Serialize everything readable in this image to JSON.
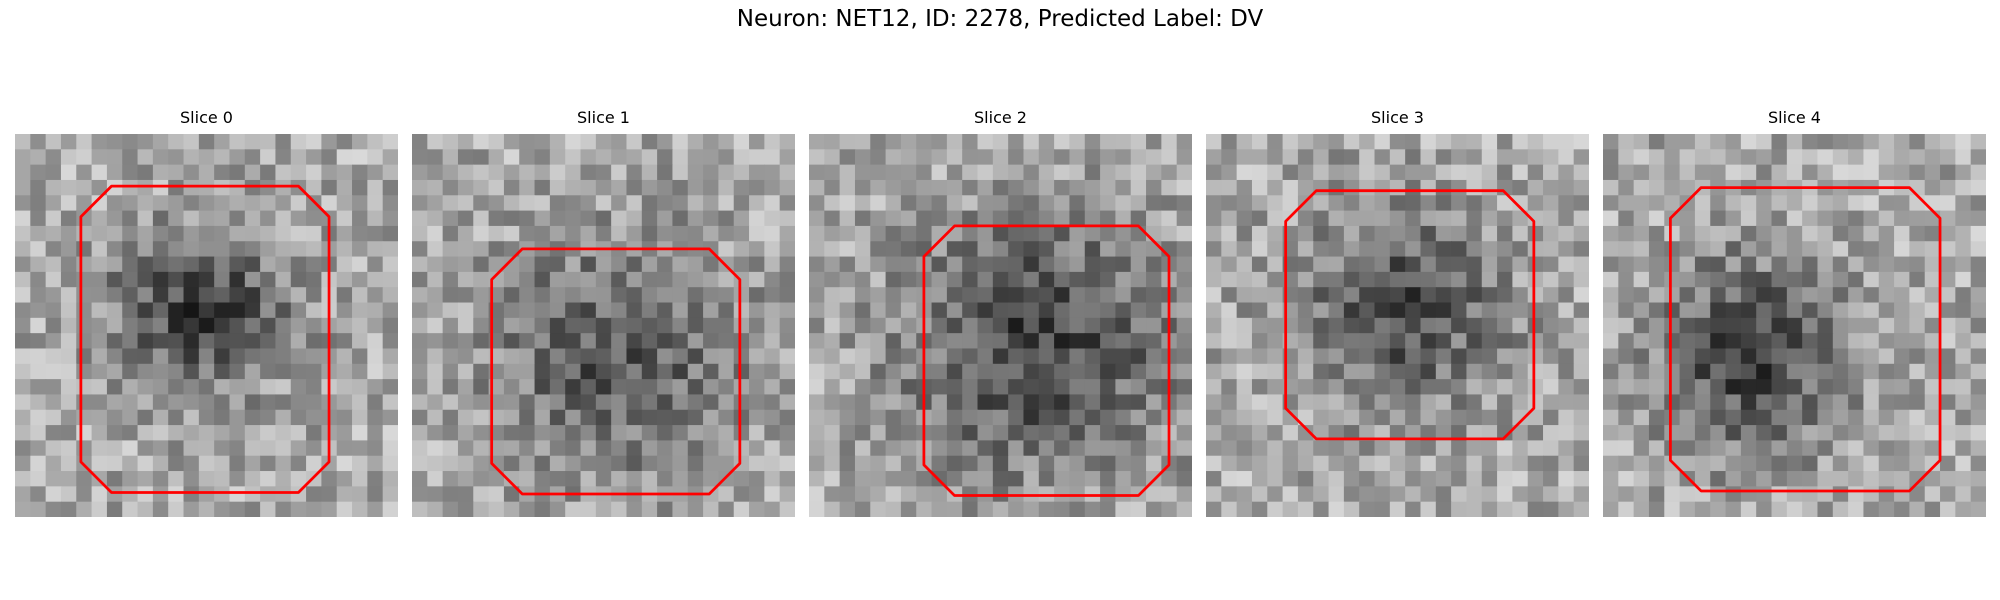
{
  "figure": {
    "title": "Neuron: NET12, ID: 2278, Predicted Label: DV"
  },
  "panels": [
    {
      "label": "Slice 0",
      "contour": {
        "cx": 12.4,
        "cy": 13.4,
        "rx": 8.1,
        "ry": 10.0,
        "cut": 2.0
      },
      "blob": {
        "cx": 12.0,
        "cy": 11.5,
        "rx": 6.0,
        "ry": 5.5,
        "depth": 105
      }
    },
    {
      "label": "Slice 1",
      "contour": {
        "cx": 13.3,
        "cy": 15.5,
        "rx": 8.1,
        "ry": 8.0,
        "cut": 2.0
      },
      "blob": {
        "cx": 13.3,
        "cy": 14.5,
        "rx": 8.2,
        "ry": 7.8,
        "depth": 85
      }
    },
    {
      "label": "Slice 2",
      "contour": {
        "cx": 15.5,
        "cy": 14.8,
        "rx": 8.0,
        "ry": 8.8,
        "cut": 2.0
      },
      "blob": {
        "cx": 15.0,
        "cy": 13.8,
        "rx": 9.0,
        "ry": 8.5,
        "depth": 105
      }
    },
    {
      "label": "Slice 3",
      "contour": {
        "cx": 13.3,
        "cy": 11.8,
        "rx": 8.1,
        "ry": 8.1,
        "cut": 2.0
      },
      "blob": {
        "cx": 12.8,
        "cy": 11.5,
        "rx": 6.8,
        "ry": 6.5,
        "depth": 95
      }
    },
    {
      "label": "Slice 4",
      "contour": {
        "cx": 13.2,
        "cy": 13.4,
        "rx": 8.8,
        "ry": 9.9,
        "cut": 2.0
      },
      "blob": {
        "cx": 9.5,
        "cy": 14.5,
        "rx": 6.0,
        "ry": 6.5,
        "depth": 105
      }
    }
  ],
  "style": {
    "contour_color": "#ff0000",
    "grid_size": 25
  }
}
